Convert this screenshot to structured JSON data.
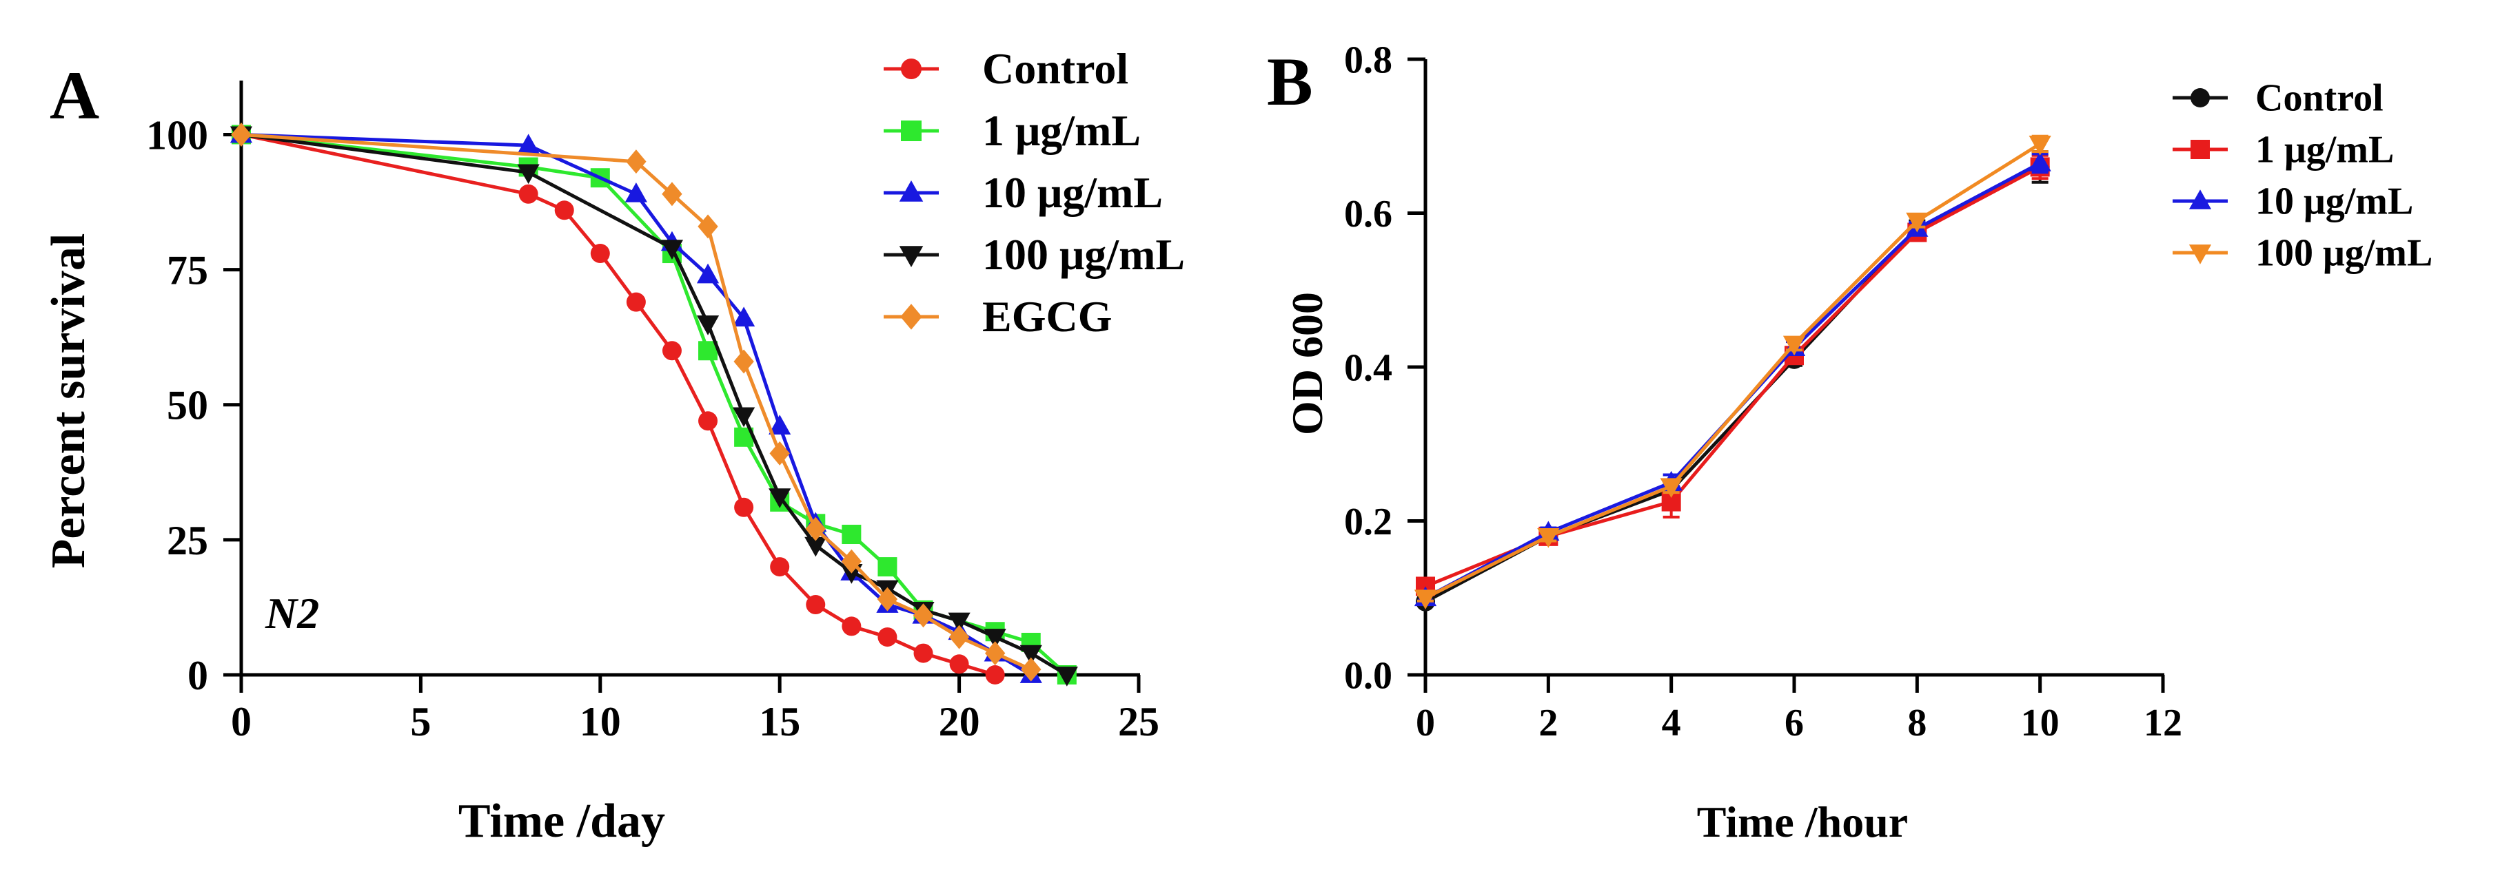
{
  "panels": [
    {
      "panel_letter": "A",
      "strain_label": "N2"
    },
    {
      "panel_letter": "B",
      "strain_label": ""
    }
  ],
  "chart_data": [
    {
      "type": "line",
      "title": "",
      "xlabel": "Time /day",
      "ylabel": "Percent survival",
      "xlim": [
        0,
        25
      ],
      "ylim": [
        0,
        110
      ],
      "xticks": [
        0,
        5,
        10,
        15,
        20,
        25
      ],
      "xtick_labels": [
        "0",
        "5",
        "10",
        "15",
        "20",
        "25"
      ],
      "yticks": [
        0,
        25,
        50,
        75,
        100
      ],
      "ytick_labels": [
        "0",
        "25",
        "50",
        "75",
        "100"
      ],
      "grid": false,
      "legend_position": "top-right",
      "series": [
        {
          "name": "Control",
          "color": "#e8201f",
          "marker": "circle",
          "x": [
            0,
            8,
            9,
            10,
            11,
            12,
            13,
            14,
            15,
            16,
            17,
            18,
            19,
            20,
            21
          ],
          "y": [
            100,
            89,
            86,
            78,
            69,
            60,
            47,
            31,
            20,
            13,
            9,
            7,
            4,
            2,
            0
          ]
        },
        {
          "name": "1 μg/mL",
          "color": "#2ee82e",
          "marker": "square",
          "x": [
            0,
            8,
            10,
            12,
            13,
            14,
            15,
            16,
            17,
            18,
            19,
            21,
            22,
            23
          ],
          "y": [
            100,
            94,
            92,
            78,
            60,
            44,
            32,
            28,
            26,
            20,
            12,
            8,
            6,
            0
          ]
        },
        {
          "name": "10 μg/mL",
          "color": "#1818e0",
          "marker": "triangle-up",
          "x": [
            0,
            8,
            11,
            12,
            13,
            14,
            15,
            16,
            17,
            18,
            19,
            20,
            21,
            22
          ],
          "y": [
            100,
            98,
            89,
            80,
            74,
            66,
            46,
            28,
            19,
            13,
            11,
            8,
            4,
            0
          ]
        },
        {
          "name": "100 μg/mL",
          "color": "#111111",
          "marker": "triangle-down",
          "x": [
            0,
            8,
            12,
            13,
            14,
            15,
            16,
            17,
            18,
            19,
            20,
            21,
            22,
            23
          ],
          "y": [
            100,
            93,
            79,
            65,
            48,
            33,
            24,
            19,
            16,
            12,
            10,
            7,
            4,
            0
          ]
        },
        {
          "name": "EGCG",
          "color": "#ef8b2a",
          "marker": "diamond",
          "x": [
            0,
            11,
            12,
            13,
            14,
            15,
            16,
            17,
            18,
            19,
            20,
            21,
            22
          ],
          "y": [
            100,
            95,
            89,
            83,
            58,
            41,
            27,
            21,
            14,
            11,
            7,
            4,
            1
          ]
        }
      ]
    },
    {
      "type": "line",
      "title": "",
      "xlabel": "Time /hour",
      "ylabel": "OD 600",
      "xlim": [
        0,
        12
      ],
      "ylim": [
        0,
        0.8
      ],
      "xticks": [
        0,
        2,
        4,
        6,
        8,
        10,
        12
      ],
      "xtick_labels": [
        "0",
        "2",
        "4",
        "6",
        "8",
        "10",
        "12"
      ],
      "yticks": [
        0,
        0.2,
        0.4,
        0.6,
        0.8
      ],
      "ytick_labels": [
        "0.0",
        "0.2",
        "0.4",
        "0.6",
        "0.8"
      ],
      "grid": false,
      "legend_position": "top-right",
      "series": [
        {
          "name": "Control",
          "color": "#111111",
          "marker": "circle",
          "x": [
            0,
            2,
            4,
            6,
            8,
            10
          ],
          "y": [
            0.095,
            0.18,
            0.24,
            0.41,
            0.58,
            0.66
          ],
          "error": [
            0.005,
            0.008,
            0.01,
            0.008,
            0.01,
            0.02
          ]
        },
        {
          "name": "1 μg/mL",
          "color": "#e81c1c",
          "marker": "square",
          "x": [
            0,
            2,
            4,
            6,
            8,
            10
          ],
          "y": [
            0.115,
            0.18,
            0.225,
            0.415,
            0.575,
            0.66
          ],
          "error": [
            0.005,
            0.01,
            0.02,
            0.008,
            0.008,
            0.015
          ]
        },
        {
          "name": "10 μg/mL",
          "color": "#1a1ae0",
          "marker": "triangle-up",
          "x": [
            0,
            2,
            4,
            6,
            8,
            10
          ],
          "y": [
            0.1,
            0.185,
            0.25,
            0.425,
            0.58,
            0.665
          ],
          "error": [
            0.004,
            0.006,
            0.01,
            0.008,
            0.008,
            0.012
          ]
        },
        {
          "name": "100 μg/mL",
          "color": "#f18a22",
          "marker": "triangle-down",
          "x": [
            0,
            2,
            4,
            6,
            8,
            10
          ],
          "y": [
            0.1,
            0.18,
            0.245,
            0.43,
            0.59,
            0.69
          ],
          "error": [
            0.004,
            0.006,
            0.008,
            0.008,
            0.008,
            0.01
          ]
        }
      ]
    }
  ]
}
